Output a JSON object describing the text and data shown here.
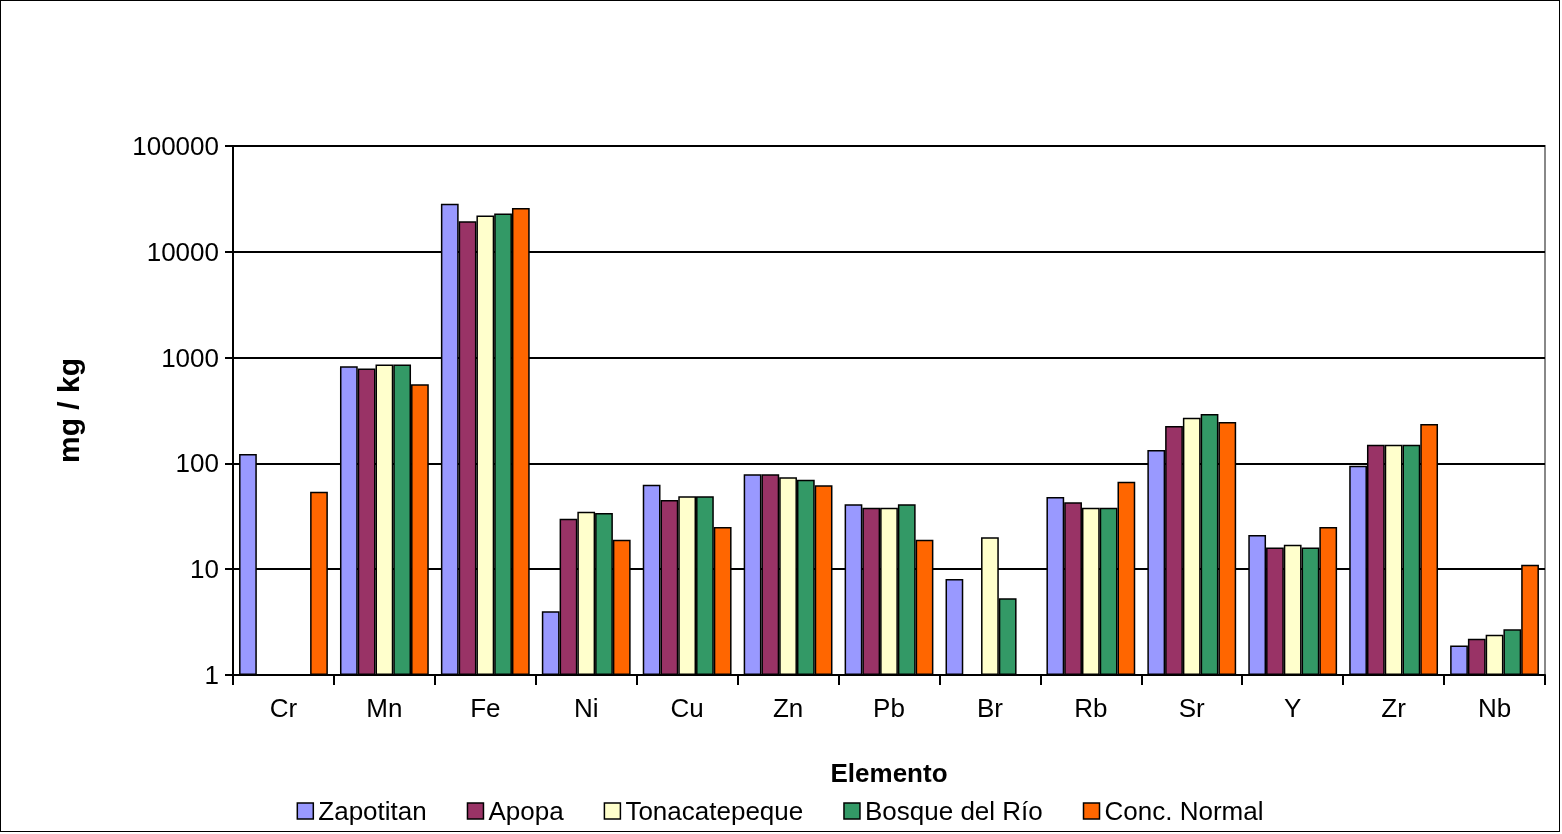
{
  "chart_data": {
    "type": "bar",
    "xlabel": "Elemento",
    "ylabel": "mg / kg",
    "categories": [
      "Cr",
      "Mn",
      "Fe",
      "Ni",
      "Cu",
      "Zn",
      "Pb",
      "Br",
      "Rb",
      "Sr",
      "Y",
      "Zr",
      "Nb"
    ],
    "series": [
      {
        "name": "Zapotitan",
        "color": "#9999ff",
        "values": [
          123,
          830,
          28500,
          4,
          63,
          79,
          41,
          8.1,
          48,
          134,
          21,
          95,
          1.9
        ]
      },
      {
        "name": "Apopa",
        "color": "#993366",
        "values": [
          null,
          790,
          19400,
          30,
          45,
          79,
          38,
          null,
          43,
          226,
          16,
          150,
          2.2
        ]
      },
      {
        "name": "Tonacatepeque",
        "color": "#ffffcc",
        "values": [
          null,
          860,
          22000,
          35,
          49,
          74,
          38,
          20,
          38,
          270,
          17,
          150,
          2.4
        ]
      },
      {
        "name": "Bosque del Río",
        "color": "#339966",
        "values": [
          null,
          860,
          23000,
          34,
          49,
          70,
          41,
          5.3,
          38,
          293,
          16,
          150,
          2.7
        ]
      },
      {
        "name": "Conc. Normal",
        "color": "#ff6600",
        "values": [
          54,
          560,
          26000,
          19,
          25,
          62,
          19,
          null,
          67,
          246,
          25,
          236,
          11
        ]
      }
    ],
    "log": "y",
    "ylim": [
      1,
      100000
    ],
    "yticks": [
      1,
      10,
      100,
      1000,
      10000,
      100000
    ],
    "grid": "y",
    "legend": "bottom"
  }
}
